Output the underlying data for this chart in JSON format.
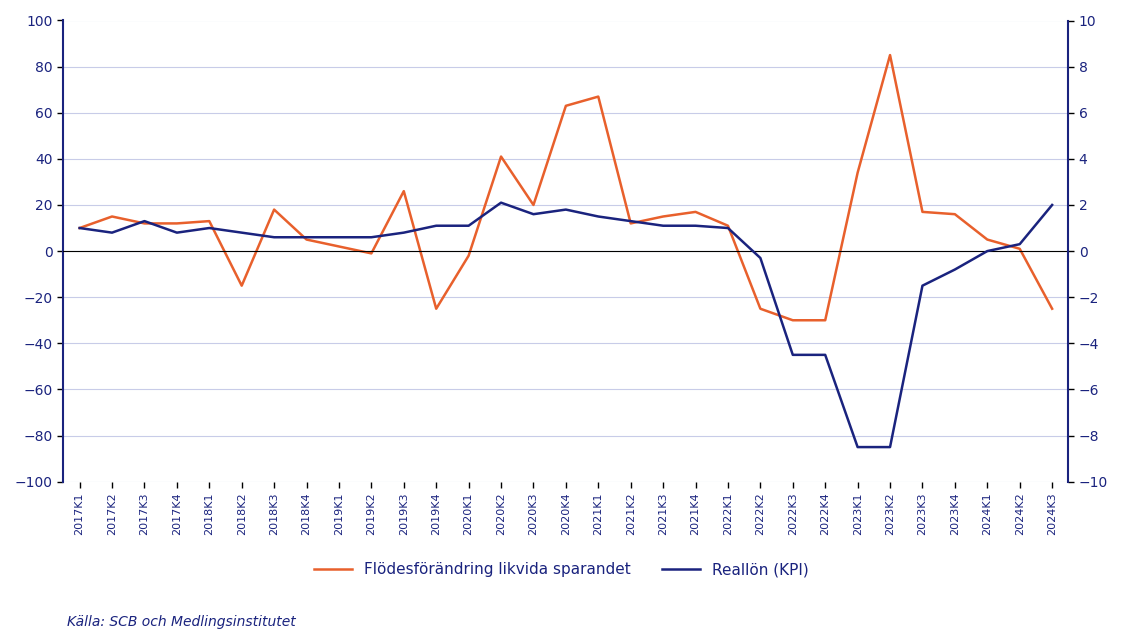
{
  "x_labels": [
    "2017K1",
    "2017K2",
    "2017K3",
    "2017K4",
    "2018K1",
    "2018K2",
    "2018K3",
    "2018K4",
    "2019K1",
    "2019K2",
    "2019K3",
    "2019K4",
    "2020K1",
    "2020K2",
    "2020K3",
    "2020K4",
    "2021K1",
    "2021K2",
    "2021K3",
    "2021K4",
    "2022K1",
    "2022K2",
    "2022K3",
    "2022K4",
    "2023K1",
    "2023K2",
    "2023K3",
    "2023K4",
    "2024K1",
    "2024K2",
    "2024K3"
  ],
  "flode": [
    10,
    15,
    12,
    12,
    13,
    -15,
    18,
    5,
    2,
    -1,
    26,
    -25,
    -2,
    41,
    20,
    63,
    67,
    12,
    15,
    17,
    11,
    -25,
    -30,
    -30,
    34,
    85,
    17,
    16,
    5,
    1,
    -25
  ],
  "realloen": [
    1.0,
    0.8,
    1.3,
    0.8,
    1.0,
    0.8,
    0.6,
    0.6,
    0.6,
    0.6,
    0.8,
    1.1,
    1.1,
    2.1,
    1.6,
    1.8,
    1.5,
    1.3,
    1.1,
    1.1,
    1.0,
    -0.3,
    -4.5,
    -4.5,
    -8.5,
    -8.5,
    -1.5,
    -0.8,
    0.0,
    0.3,
    2.0
  ],
  "flode_color": "#e8602c",
  "realloen_color": "#1a237e",
  "background_color": "#ffffff",
  "plot_bg": "#ffffff",
  "left_ylim": [
    -100,
    100
  ],
  "right_ylim": [
    -10,
    10
  ],
  "left_yticks": [
    -100,
    -80,
    -60,
    -40,
    -20,
    0,
    20,
    40,
    60,
    80,
    100
  ],
  "right_yticks": [
    -10,
    -8,
    -6,
    -4,
    -2,
    0,
    2,
    4,
    6,
    8,
    10
  ],
  "legend_flode": "Flödesförändring likvida sparandet",
  "legend_realloen": "Reallön (KPI)",
  "source": "Källa: SCB och Medlingsinstitutet",
  "grid_color": "#c8cce8",
  "axis_color": "#1a237e",
  "spine_color": "#1a237e",
  "line_width": 1.8
}
